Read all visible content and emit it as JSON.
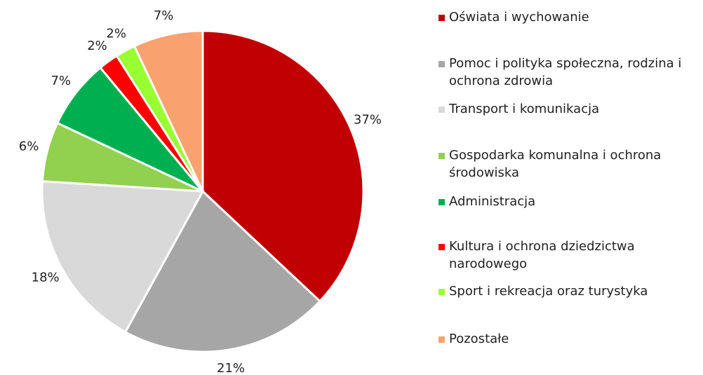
{
  "chart_data": {
    "type": "pie",
    "categories": [
      "Oświata i wychowanie",
      "Pomoc i polityka społeczna, rodzina i ochrona zdrowia",
      "Transport i komunikacja",
      "Gospodarka komunalna i ochrona środowiska",
      "Administracja",
      "Kultura i ochrona dziedzictwa narodowego",
      "Sport i rekreacja oraz turystyka",
      "Pozostałe"
    ],
    "values": [
      37,
      21,
      18,
      6,
      7,
      2,
      2,
      7
    ],
    "value_labels": [
      "37%",
      "21%",
      "18%",
      "6%",
      "7%",
      "2%",
      "2%",
      "7%"
    ],
    "colors": [
      "#c00000",
      "#a6a6a6",
      "#d9d9d9",
      "#92d050",
      "#00b050",
      "#ff0000",
      "#99ff33",
      "#f9a26f"
    ],
    "legend": "right"
  }
}
